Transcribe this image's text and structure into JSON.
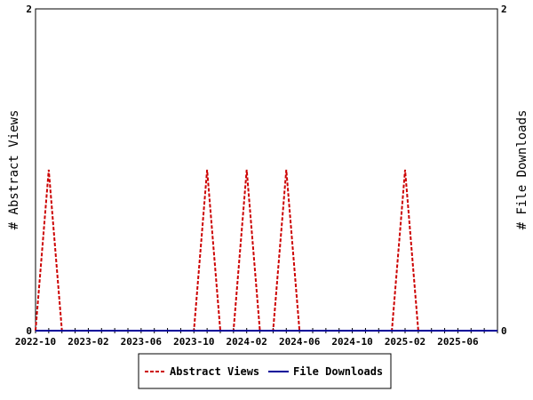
{
  "chart_data": {
    "type": "line",
    "ylabel_left": "# Abstract Views",
    "ylabel_right": "# File Downloads",
    "ylim": [
      0,
      2
    ],
    "y_ticks_left": [
      "0",
      "2"
    ],
    "y_ticks_right": [
      "0",
      "2"
    ],
    "x_tick_labels": [
      "2022-10",
      "2023-02",
      "2023-06",
      "2023-10",
      "2024-02",
      "2024-06",
      "2024-10",
      "2025-02",
      "2025-06"
    ],
    "x_months": [
      "2022-10",
      "2022-11",
      "2022-12",
      "2023-01",
      "2023-02",
      "2023-03",
      "2023-04",
      "2023-05",
      "2023-06",
      "2023-07",
      "2023-08",
      "2023-09",
      "2023-10",
      "2023-11",
      "2023-12",
      "2024-01",
      "2024-02",
      "2024-03",
      "2024-04",
      "2024-05",
      "2024-06",
      "2024-07",
      "2024-08",
      "2024-09",
      "2024-10",
      "2024-11",
      "2024-12",
      "2025-01",
      "2025-02",
      "2025-03",
      "2025-04",
      "2025-05",
      "2025-06",
      "2025-07",
      "2025-08",
      "2025-09"
    ],
    "series": [
      {
        "name": "Abstract Views",
        "color": "#cc0000",
        "style": "dashed",
        "values": [
          0,
          1,
          0,
          0,
          0,
          0,
          0,
          0,
          0,
          0,
          0,
          0,
          0,
          1,
          0,
          0,
          1,
          0,
          0,
          1,
          0,
          0,
          0,
          0,
          0,
          0,
          0,
          0,
          1,
          0,
          0,
          0,
          0,
          0,
          0,
          0
        ]
      },
      {
        "name": "File Downloads",
        "color": "#000099",
        "style": "solid",
        "values": [
          0,
          0,
          0,
          0,
          0,
          0,
          0,
          0,
          0,
          0,
          0,
          0,
          0,
          0,
          0,
          0,
          0,
          0,
          0,
          0,
          0,
          0,
          0,
          0,
          0,
          0,
          0,
          0,
          0,
          0,
          0,
          0,
          0,
          0,
          0,
          0
        ]
      }
    ],
    "grid": false,
    "legend_position": "bottom-center"
  }
}
